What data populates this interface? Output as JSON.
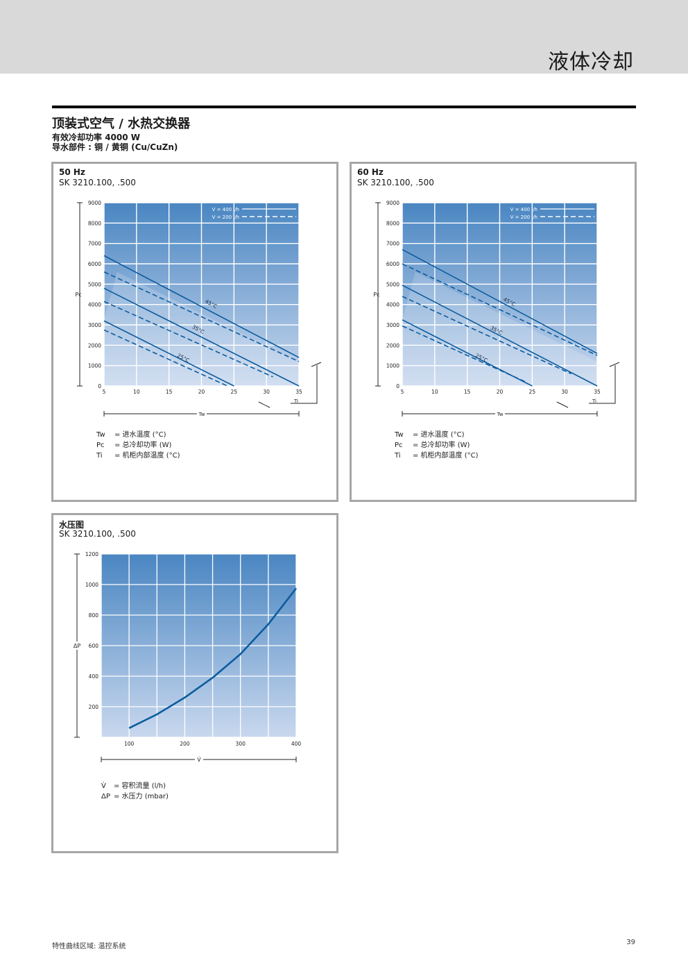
{
  "header": {
    "title": "液体冷却"
  },
  "main_title": "顶装式空气 / 水热交换器",
  "subtitle_power_label": "有效冷却功率",
  "subtitle_power_value": "4000 W",
  "subtitle_material_label": "导水部件 :",
  "subtitle_material_value": "铜 / 黄铜 (Cu/CuZn)",
  "colors": {
    "plot_top": "#4a86c2",
    "plot_bottom": "#c9d8ee",
    "line": "#0c5c9e",
    "grid": "#ffffff",
    "border": "#a6a6a6",
    "header_band": "#d9d9d9"
  },
  "panels": {
    "p50": {
      "title": "50 Hz",
      "model": "SK 3210.100, .500"
    },
    "p60": {
      "title": "60 Hz",
      "model": "SK 3210.100, .500"
    },
    "pressure": {
      "title": "水压图",
      "model": "SK 3210.100, .500"
    }
  },
  "legend_cooling": {
    "tw_sym": "Tw",
    "tw_text": "= 进水温度 (°C)",
    "pc_sym": "Pc",
    "pc_text": "= 总冷却功率 (W)",
    "ti_sym": "Ti",
    "ti_text": "= 机柜内部温度 (°C)"
  },
  "legend_pressure": {
    "v_sym": "V̇",
    "v_text": "= 容积流量 (l/h)",
    "dp_sym": "ΔP",
    "dp_text": "= 水压力 (mbar)"
  },
  "footer": {
    "text": "特性曲线区域: 温控系统",
    "page": "39"
  },
  "chart_data": [
    {
      "id": "p50",
      "type": "line",
      "title": "50 Hz",
      "xlabel": "Tw",
      "ylabel": "Pc",
      "x_extra_label": "Ti",
      "xlim": [
        5,
        35
      ],
      "ylim": [
        0,
        9000
      ],
      "xticks": [
        5,
        10,
        15,
        20,
        25,
        30,
        35
      ],
      "yticks": [
        0,
        1000,
        2000,
        3000,
        4000,
        5000,
        6000,
        7000,
        8000,
        9000
      ],
      "legend": [
        {
          "label": "V = 400 l/h",
          "style": "solid"
        },
        {
          "label": "V = 200 l/h",
          "style": "dashed"
        }
      ],
      "legend_position": "top-right",
      "series": [
        {
          "name": "45°C",
          "flow": "400 l/h",
          "dash": false,
          "x": [
            5,
            35
          ],
          "y": [
            6400,
            1400
          ]
        },
        {
          "name": "45°C",
          "flow": "200 l/h",
          "dash": true,
          "x": [
            5,
            35
          ],
          "y": [
            5600,
            1200
          ]
        },
        {
          "name": "35°C",
          "flow": "400 l/h",
          "dash": false,
          "x": [
            5,
            35
          ],
          "y": [
            4800,
            0
          ]
        },
        {
          "name": "35°C",
          "flow": "200 l/h",
          "dash": true,
          "x": [
            5,
            31
          ],
          "y": [
            4150,
            450
          ]
        },
        {
          "name": "25°C",
          "flow": "400 l/h",
          "dash": false,
          "x": [
            5,
            25
          ],
          "y": [
            3200,
            0
          ]
        },
        {
          "name": "25°C",
          "flow": "200 l/h",
          "dash": true,
          "x": [
            5,
            24
          ],
          "y": [
            2750,
            0
          ]
        }
      ],
      "annotations": [
        {
          "text": "45°C",
          "x": 20.5,
          "y": 4100
        },
        {
          "text": "35°C",
          "x": 18.5,
          "y": 2850
        },
        {
          "text": "25°C",
          "x": 16.2,
          "y": 1450
        }
      ]
    },
    {
      "id": "p60",
      "type": "line",
      "title": "60 Hz",
      "xlabel": "Tw",
      "ylabel": "Pc",
      "x_extra_label": "Ti",
      "xlim": [
        5,
        35
      ],
      "ylim": [
        0,
        9000
      ],
      "xticks": [
        5,
        10,
        15,
        20,
        25,
        30,
        35
      ],
      "yticks": [
        0,
        1000,
        2000,
        3000,
        4000,
        5000,
        6000,
        7000,
        8000,
        9000
      ],
      "legend": [
        {
          "label": "V = 400 l/h",
          "style": "solid"
        },
        {
          "label": "V = 200 l/h",
          "style": "dashed"
        }
      ],
      "legend_position": "top-right",
      "series": [
        {
          "name": "45°C",
          "flow": "400 l/h",
          "dash": false,
          "x": [
            5,
            35
          ],
          "y": [
            6700,
            1600
          ]
        },
        {
          "name": "45°C",
          "flow": "200 l/h",
          "dash": true,
          "x": [
            5,
            35
          ],
          "y": [
            6000,
            1500
          ]
        },
        {
          "name": "35°C",
          "flow": "400 l/h",
          "dash": false,
          "x": [
            5,
            35
          ],
          "y": [
            4950,
            0
          ]
        },
        {
          "name": "35°C",
          "flow": "200 l/h",
          "dash": true,
          "x": [
            5,
            31
          ],
          "y": [
            4400,
            600
          ]
        },
        {
          "name": "25°C",
          "flow": "400 l/h",
          "dash": false,
          "x": [
            5,
            25
          ],
          "y": [
            3250,
            0
          ]
        },
        {
          "name": "25°C",
          "flow": "200 l/h",
          "dash": true,
          "x": [
            5,
            24
          ],
          "y": [
            2950,
            200
          ]
        }
      ],
      "annotations": [
        {
          "text": "45°C",
          "x": 20.5,
          "y": 4200
        },
        {
          "text": "35°C",
          "x": 18.5,
          "y": 2800
        },
        {
          "text": "25°C",
          "x": 16.2,
          "y": 1450
        }
      ]
    },
    {
      "id": "pressure",
      "type": "line",
      "title": "水压图",
      "xlabel": "V̇",
      "ylabel": "ΔP",
      "xlim": [
        50,
        400
      ],
      "ylim": [
        0,
        1200
      ],
      "xticks": [
        100,
        200,
        300,
        400
      ],
      "yticks": [
        200,
        400,
        600,
        800,
        1000,
        1200
      ],
      "series": [
        {
          "name": "",
          "dash": false,
          "x": [
            100,
            150,
            200,
            250,
            300,
            350,
            400
          ],
          "y": [
            60,
            150,
            260,
            390,
            545,
            740,
            975
          ]
        }
      ]
    }
  ]
}
